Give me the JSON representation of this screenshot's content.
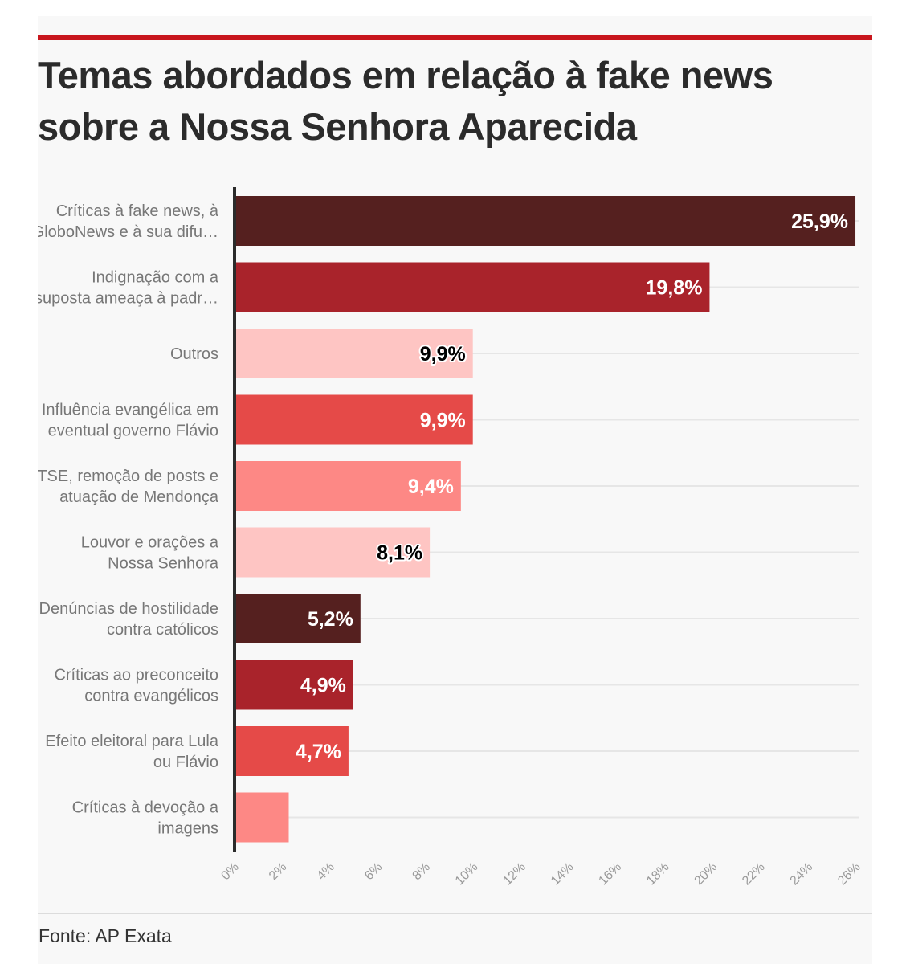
{
  "chart_data": {
    "type": "bar",
    "orientation": "horizontal",
    "title": "Temas abordados em relação à fake news sobre a Nossa Senhora Aparecida",
    "categories": [
      [
        "Críticas à fake news, à",
        "GloboNews e à sua difu…"
      ],
      [
        "Indignação com a",
        "suposta ameaça à padr…"
      ],
      [
        "Outros"
      ],
      [
        "Influência evangélica em",
        "eventual governo Flávio"
      ],
      [
        "TSE, remoção de posts e",
        "atuação de Mendonça"
      ],
      [
        "Louvor e orações a",
        "Nossa Senhora"
      ],
      [
        "Denúncias de hostilidade",
        "contra católicos"
      ],
      [
        "Críticas ao preconceito",
        "contra evangélicos"
      ],
      [
        "Efeito eleitoral para Lula",
        "ou Flávio"
      ],
      [
        "Críticas à devoção a",
        "imagens"
      ]
    ],
    "values": [
      25.9,
      19.8,
      9.9,
      9.9,
      9.4,
      8.1,
      5.2,
      4.9,
      4.7,
      2.2
    ],
    "value_labels": [
      "25,9%",
      "19,8%",
      "9,9%",
      "9,9%",
      "9,4%",
      "8,1%",
      "5,2%",
      "4,9%",
      "4,7%",
      ""
    ],
    "bar_colors": [
      "#55201f",
      "#a9232b",
      "#fec5c3",
      "#e54a48",
      "#fd8885",
      "#fec5c3",
      "#55201f",
      "#a9232b",
      "#e54a48",
      "#fd8885"
    ],
    "label_colors": [
      "#ffffff",
      "#ffffff",
      "#000000",
      "#ffffff",
      "#ffffff",
      "#000000",
      "#ffffff",
      "#ffffff",
      "#ffffff",
      "#ffffff"
    ],
    "xlim": [
      0,
      26
    ],
    "xticks": [
      0,
      2,
      4,
      6,
      8,
      10,
      12,
      14,
      16,
      18,
      20,
      22,
      24,
      26
    ],
    "xtick_labels": [
      "0%",
      "2%",
      "4%",
      "6%",
      "8%",
      "10%",
      "12%",
      "14%",
      "16%",
      "18%",
      "20%",
      "22%",
      "24%",
      "26%"
    ],
    "grid": true,
    "legend": "none"
  },
  "source": "Fonte: AP Exata",
  "colors": {
    "accent": "#c8161d",
    "axis": "#2b2b2b",
    "gridline": "#e6e6e6"
  }
}
